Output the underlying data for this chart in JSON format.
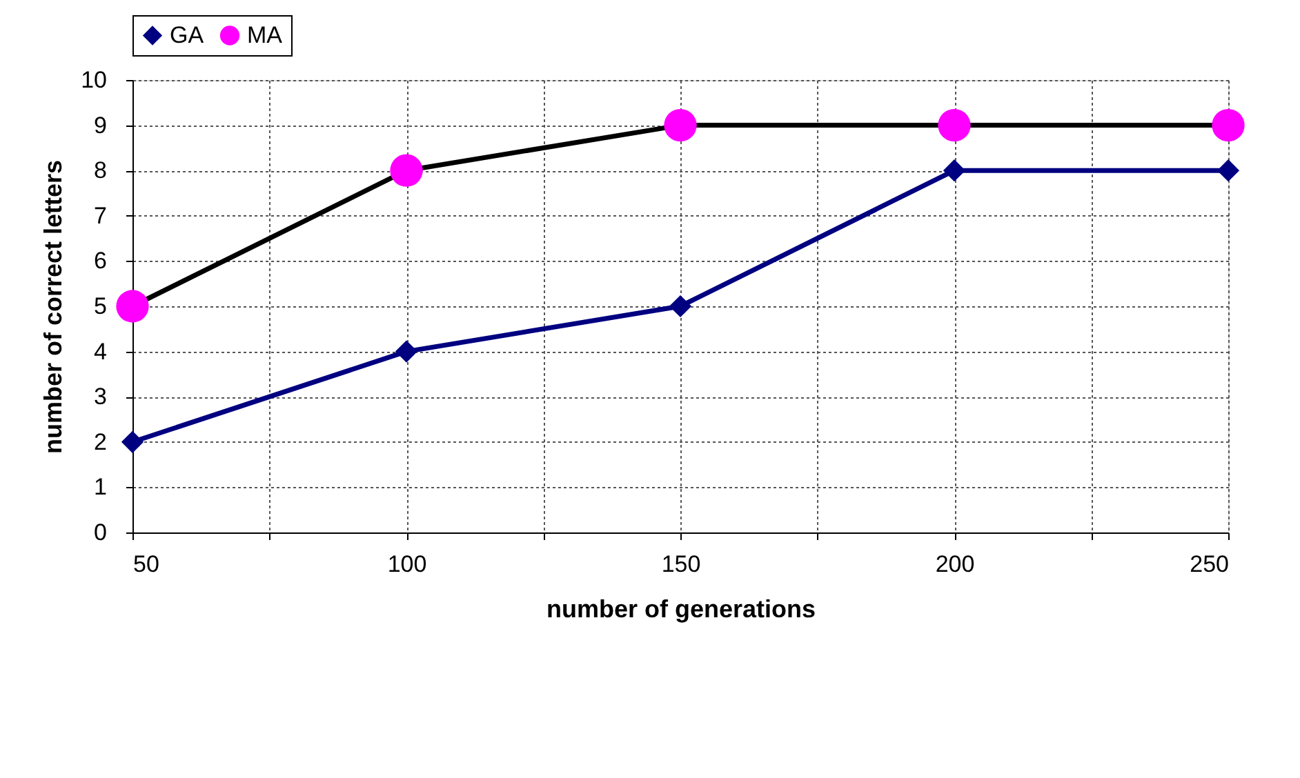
{
  "chart_data": {
    "type": "line",
    "xlabel": "number of generations",
    "ylabel": "number of correct letters",
    "x": [
      50,
      100,
      150,
      200,
      250
    ],
    "series": [
      {
        "name": "GA",
        "color": "#000080",
        "marker": "diamond",
        "values": [
          2,
          4,
          5,
          8,
          8
        ]
      },
      {
        "name": "MA",
        "color": "#000000",
        "colors": [
          "#ff00ff",
          "#ff00ff",
          "#ff00ff",
          "#ff00ff",
          "#ff00ff"
        ],
        "marker": "circle",
        "values": [
          5,
          8,
          9,
          9,
          9
        ]
      }
    ],
    "xlim": [
      50,
      250
    ],
    "xticks": [
      50,
      {
        "value": 75,
        "label": null
      },
      100,
      {
        "value": 125,
        "label": null
      },
      150,
      {
        "value": 175,
        "label": null
      },
      200,
      {
        "value": 225,
        "label": null
      },
      250
    ],
    "ylim": [
      0,
      10
    ],
    "yticks": [
      0,
      1,
      2,
      3,
      4,
      5,
      6,
      7,
      8,
      9,
      10
    ],
    "grid": true,
    "legend": "top",
    "line_style": "solid"
  }
}
